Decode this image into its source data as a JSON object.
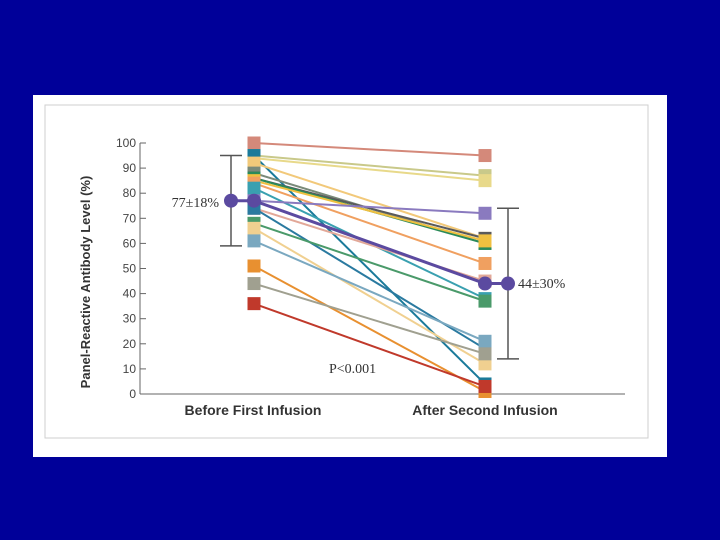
{
  "chart_data": {
    "type": "line",
    "title": "",
    "ylabel": "Panel-Reactive Antibody Level (%)",
    "xlabel": "",
    "categories": [
      "Before First Infusion",
      "After Second Infusion"
    ],
    "ylim": [
      0,
      100
    ],
    "yticks": [
      "0",
      "10",
      "20",
      "30",
      "40",
      "50",
      "60",
      "70",
      "80",
      "90",
      "100"
    ],
    "grid": false,
    "series": [
      {
        "color": "#d4897a",
        "values": [
          100,
          95
        ]
      },
      {
        "color": "#c9c98a",
        "values": [
          95,
          87
        ]
      },
      {
        "color": "#e8d98a",
        "values": [
          94,
          85
        ]
      },
      {
        "color": "#1a7a9a",
        "values": [
          95,
          4
        ]
      },
      {
        "color": "#f2c97a",
        "values": [
          92,
          62
        ]
      },
      {
        "color": "#7a8a7a",
        "values": [
          88,
          60
        ]
      },
      {
        "color": "#5a5a5a",
        "values": [
          86,
          62
        ]
      },
      {
        "color": "#2a8a5a",
        "values": [
          86,
          60
        ]
      },
      {
        "color": "#f0c040",
        "values": [
          85,
          61
        ]
      },
      {
        "color": "#f0a060",
        "values": [
          84,
          52
        ]
      },
      {
        "color": "#3aa0b0",
        "values": [
          82,
          38
        ]
      },
      {
        "color": "#8a7abf",
        "values": [
          77,
          72
        ]
      },
      {
        "color": "#e2a898",
        "values": [
          74,
          45
        ]
      },
      {
        "color": "#2a7aa0",
        "values": [
          74,
          18
        ]
      },
      {
        "color": "#4a9a6a",
        "values": [
          68,
          37
        ]
      },
      {
        "color": "#f0d090",
        "values": [
          66,
          12
        ]
      },
      {
        "color": "#7aa8c0",
        "values": [
          61,
          21
        ]
      },
      {
        "color": "#e89030",
        "values": [
          51,
          1
        ]
      },
      {
        "color": "#a0a090",
        "values": [
          44,
          16
        ]
      },
      {
        "color": "#c0392b",
        "values": [
          36,
          3
        ]
      },
      {
        "color": "#5b4aa0",
        "values": [
          77,
          44
        ],
        "mean": true
      }
    ],
    "error_bars": [
      {
        "category": "Before First Infusion",
        "mean": 77,
        "sd": 18
      },
      {
        "category": "After Second Infusion",
        "mean": 44,
        "sd": 30
      }
    ],
    "annotations": {
      "before_mean_label": "77±18%",
      "after_mean_label": "44±30%",
      "p_value": "P<0.001"
    }
  }
}
